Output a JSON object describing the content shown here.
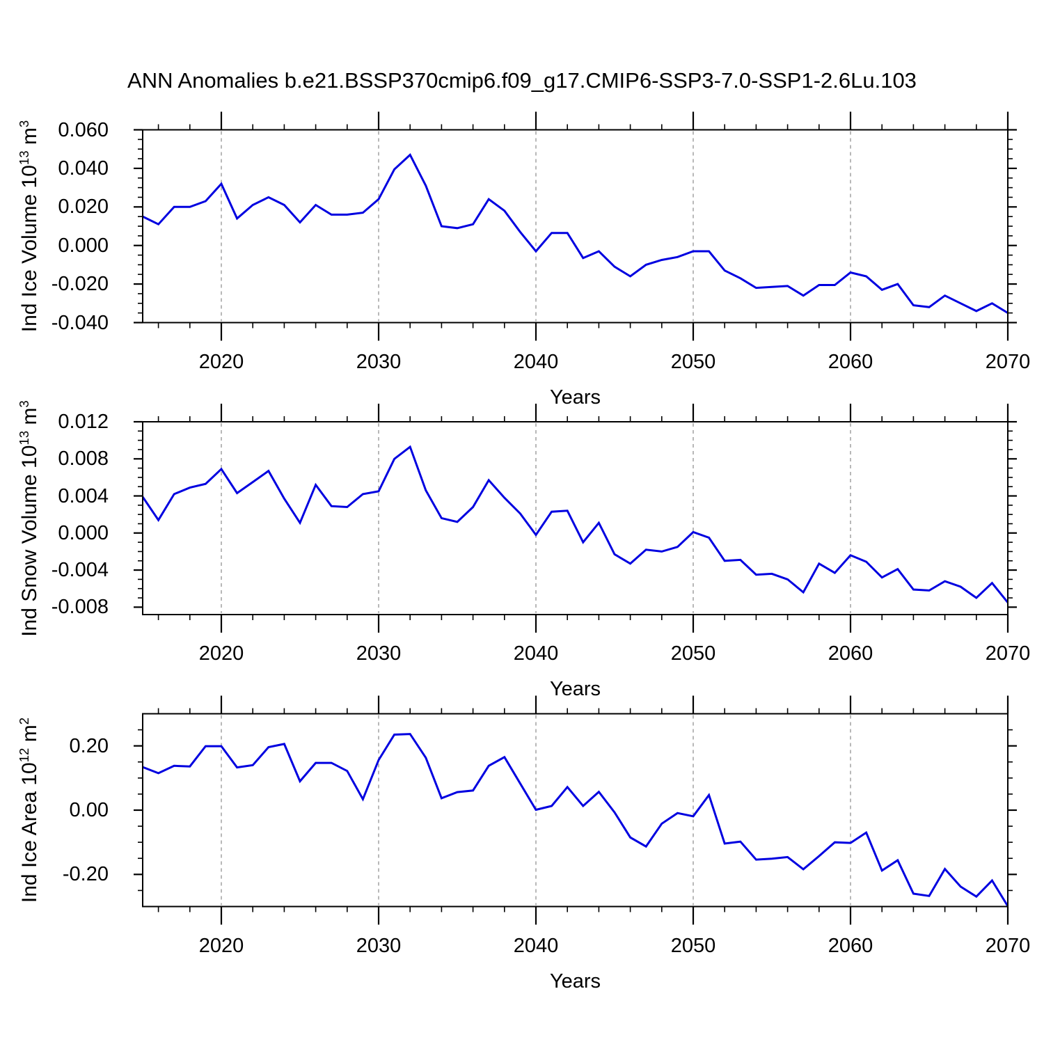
{
  "title": "ANN Anomalies b.e21.BSSP370cmip6.f09_g17.CMIP6-SSP3-7.0-SSP1-2.6Lu.103",
  "colors": {
    "line": "#0000e0",
    "axis": "#000000",
    "grid": "#999999",
    "background": "#ffffff"
  },
  "chart_data": [
    {
      "type": "line",
      "name": "ice-volume",
      "ylabel": {
        "base": "Ind Ice Volume 10",
        "exp": "13",
        "unit": " m",
        "unit_exp": "3"
      },
      "xlabel": "Years",
      "xlim": [
        2015,
        2070
      ],
      "ylim": [
        -0.04,
        0.06
      ],
      "grid_years": [
        2020,
        2030,
        2040,
        2050,
        2060
      ],
      "xticks": {
        "years": [
          2020,
          2030,
          2040,
          2050,
          2060,
          2070
        ],
        "labels": [
          "2020",
          "2030",
          "2040",
          "2050",
          "2060",
          "2070"
        ]
      },
      "yticks": {
        "values": [
          0.06,
          0.04,
          0.02,
          0.0,
          -0.02,
          -0.04
        ],
        "labels": [
          "0.060",
          "0.040",
          "0.020",
          "0.000",
          "-0.020",
          "-0.040"
        ]
      },
      "ytick_minor_step": 0.005,
      "x": [
        2015,
        2016,
        2017,
        2018,
        2019,
        2020,
        2021,
        2022,
        2023,
        2024,
        2025,
        2026,
        2027,
        2028,
        2029,
        2030,
        2031,
        2032,
        2033,
        2034,
        2035,
        2036,
        2037,
        2038,
        2039,
        2040,
        2041,
        2042,
        2043,
        2044,
        2045,
        2046,
        2047,
        2048,
        2049,
        2050,
        2051,
        2052,
        2053,
        2054,
        2055,
        2056,
        2057,
        2058,
        2059,
        2060,
        2061,
        2062,
        2063,
        2064,
        2065,
        2066,
        2067,
        2068,
        2069,
        2070
      ],
      "values": [
        0.015,
        0.011,
        0.02,
        0.02,
        0.023,
        0.032,
        0.014,
        0.021,
        0.025,
        0.021,
        0.012,
        0.021,
        0.016,
        0.016,
        0.017,
        0.024,
        0.0395,
        0.047,
        0.031,
        0.01,
        0.009,
        0.011,
        0.024,
        0.018,
        0.007,
        -0.003,
        0.0065,
        0.0065,
        -0.0065,
        -0.003,
        -0.011,
        -0.016,
        -0.01,
        -0.0075,
        -0.006,
        -0.003,
        -0.003,
        -0.013,
        -0.017,
        -0.022,
        -0.0215,
        -0.021,
        -0.026,
        -0.0205,
        -0.0205,
        -0.014,
        -0.016,
        -0.023,
        -0.02,
        -0.031,
        -0.032,
        -0.026,
        -0.03,
        -0.034,
        -0.03,
        -0.035
      ]
    },
    {
      "type": "line",
      "name": "snow-volume",
      "ylabel": {
        "base": "Ind Snow Volume 10",
        "exp": "13",
        "unit": " m",
        "unit_exp": "3"
      },
      "xlabel": "Years",
      "xlim": [
        2015,
        2070
      ],
      "ylim": [
        -0.0088,
        0.012
      ],
      "grid_years": [
        2020,
        2030,
        2040,
        2050,
        2060
      ],
      "xticks": {
        "years": [
          2020,
          2030,
          2040,
          2050,
          2060,
          2070
        ],
        "labels": [
          "2020",
          "2030",
          "2040",
          "2050",
          "2060",
          "2070"
        ]
      },
      "yticks": {
        "values": [
          0.012,
          0.008,
          0.004,
          0.0,
          -0.004,
          -0.008
        ],
        "labels": [
          "0.012",
          "0.008",
          "0.004",
          "0.000",
          "-0.004",
          "-0.008"
        ]
      },
      "ytick_minor_step": 0.001,
      "x": [
        2015,
        2016,
        2017,
        2018,
        2019,
        2020,
        2021,
        2022,
        2023,
        2024,
        2025,
        2026,
        2027,
        2028,
        2029,
        2030,
        2031,
        2032,
        2033,
        2034,
        2035,
        2036,
        2037,
        2038,
        2039,
        2040,
        2041,
        2042,
        2043,
        2044,
        2045,
        2046,
        2047,
        2048,
        2049,
        2050,
        2051,
        2052,
        2053,
        2054,
        2055,
        2056,
        2057,
        2058,
        2059,
        2060,
        2061,
        2062,
        2063,
        2064,
        2065,
        2066,
        2067,
        2068,
        2069,
        2070
      ],
      "values": [
        0.0039,
        0.0014,
        0.0042,
        0.0049,
        0.0053,
        0.0069,
        0.0043,
        0.0055,
        0.0067,
        0.0037,
        0.0011,
        0.0052,
        0.0029,
        0.0028,
        0.0042,
        0.0045,
        0.008,
        0.0093,
        0.0046,
        0.0016,
        0.0012,
        0.0028,
        0.0057,
        0.0038,
        0.0021,
        -0.0002,
        0.0023,
        0.0024,
        -0.001,
        0.0011,
        -0.0023,
        -0.0033,
        -0.0018,
        -0.002,
        -0.0015,
        0.0001,
        -0.0005,
        -0.003,
        -0.0029,
        -0.0045,
        -0.0044,
        -0.005,
        -0.0064,
        -0.0033,
        -0.0043,
        -0.0024,
        -0.0031,
        -0.0048,
        -0.0039,
        -0.0061,
        -0.0062,
        -0.0052,
        -0.0058,
        -0.007,
        -0.0054,
        -0.0075
      ]
    },
    {
      "type": "line",
      "name": "ice-area",
      "ylabel": {
        "base": "Ind Ice Area 10",
        "exp": "12",
        "unit": " m",
        "unit_exp": "2"
      },
      "xlabel": "Years",
      "xlim": [
        2015,
        2070
      ],
      "ylim": [
        -0.3,
        0.3
      ],
      "grid_years": [
        2020,
        2030,
        2040,
        2050,
        2060
      ],
      "xticks": {
        "years": [
          2020,
          2030,
          2040,
          2050,
          2060,
          2070
        ],
        "labels": [
          "2020",
          "2030",
          "2040",
          "2050",
          "2060",
          "2070"
        ]
      },
      "yticks": {
        "values": [
          0.2,
          0.0,
          -0.2
        ],
        "labels": [
          "0.20",
          "0.00",
          "-0.20"
        ]
      },
      "ytick_minor_step": 0.05,
      "x": [
        2015,
        2016,
        2017,
        2018,
        2019,
        2020,
        2021,
        2022,
        2023,
        2024,
        2025,
        2026,
        2027,
        2028,
        2029,
        2030,
        2031,
        2032,
        2033,
        2034,
        2035,
        2036,
        2037,
        2038,
        2039,
        2040,
        2041,
        2042,
        2043,
        2044,
        2045,
        2046,
        2047,
        2048,
        2049,
        2050,
        2051,
        2052,
        2053,
        2054,
        2055,
        2056,
        2057,
        2058,
        2059,
        2060,
        2061,
        2062,
        2063,
        2064,
        2065,
        2066,
        2067,
        2068,
        2069,
        2070
      ],
      "values": [
        0.134,
        0.115,
        0.138,
        0.136,
        0.199,
        0.199,
        0.133,
        0.14,
        0.196,
        0.206,
        0.09,
        0.147,
        0.147,
        0.122,
        0.034,
        0.156,
        0.235,
        0.237,
        0.163,
        0.037,
        0.056,
        0.061,
        0.138,
        0.165,
        0.083,
        0.001,
        0.013,
        0.072,
        0.013,
        0.057,
        -0.007,
        -0.085,
        -0.113,
        -0.042,
        -0.009,
        -0.019,
        0.047,
        -0.104,
        -0.098,
        -0.154,
        -0.151,
        -0.146,
        -0.184,
        -0.143,
        -0.1,
        -0.102,
        -0.07,
        -0.188,
        -0.156,
        -0.26,
        -0.267,
        -0.183,
        -0.238,
        -0.269,
        -0.219,
        -0.299
      ]
    }
  ]
}
